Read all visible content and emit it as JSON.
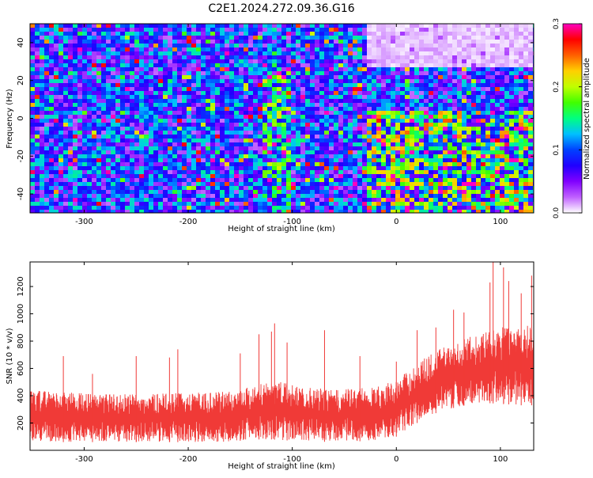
{
  "title": "C2E1.2024.272.09.36.G16",
  "chart_data": [
    {
      "type": "heatmap",
      "xlabel": "Height of straight line (km)",
      "ylabel": "Frequency (Hz)",
      "xlim": [
        -352,
        132
      ],
      "ylim": [
        -50,
        50
      ],
      "xticks": [
        -300,
        -200,
        -100,
        0,
        100
      ],
      "yticks": [
        -40,
        -20,
        0,
        20,
        40
      ],
      "value_range": [
        0.0,
        0.3
      ],
      "colorbar": {
        "label": "Normalized spectral amplitude",
        "ticks": [
          0.0,
          0.1,
          0.2,
          0.3
        ],
        "colors": [
          "#ffffff",
          "#c060ff",
          "#8000ff",
          "#2000ff",
          "#0040ff",
          "#00c0ff",
          "#00ff80",
          "#40ff00",
          "#c0ff00",
          "#ffd000",
          "#ff6000",
          "#ff0000",
          "#ff00c0"
        ]
      },
      "regions": [
        {
          "x": [
            -352,
            -180
          ],
          "y": [
            -50,
            50
          ],
          "mean": 0.04
        },
        {
          "x": [
            -130,
            -100
          ],
          "y": [
            -50,
            30
          ],
          "mean": 0.06
        },
        {
          "x": [
            -30,
            130
          ],
          "y": [
            -50,
            5
          ],
          "mean": 0.07
        },
        {
          "x": [
            -30,
            130
          ],
          "y": [
            28,
            50
          ],
          "mean": 0.005
        }
      ]
    },
    {
      "type": "line",
      "xlabel": "Height of straight line (km)",
      "ylabel": "SNR (10 * v/v)",
      "xlim": [
        -352,
        132
      ],
      "ylim": [
        0,
        1380
      ],
      "xticks": [
        -300,
        -200,
        -100,
        0,
        100
      ],
      "yticks": [
        200,
        400,
        600,
        800,
        1000,
        1200
      ],
      "color": "#f03a37",
      "envelope": {
        "x": [
          -352,
          -300,
          -250,
          -200,
          -160,
          -140,
          -120,
          -100,
          -60,
          -20,
          0,
          20,
          40,
          60,
          80,
          100,
          120,
          132
        ],
        "upper": [
          440,
          420,
          410,
          420,
          430,
          470,
          520,
          480,
          440,
          470,
          510,
          640,
          740,
          800,
          860,
          900,
          920,
          930
        ],
        "lower": [
          60,
          60,
          60,
          60,
          60,
          80,
          80,
          70,
          60,
          70,
          100,
          200,
          280,
          320,
          350,
          340,
          330,
          330
        ]
      },
      "spikes": [
        {
          "x": -352,
          "y": 470
        },
        {
          "x": -320,
          "y": 690
        },
        {
          "x": -292,
          "y": 560
        },
        {
          "x": -250,
          "y": 690
        },
        {
          "x": -218,
          "y": 680
        },
        {
          "x": -210,
          "y": 740
        },
        {
          "x": -150,
          "y": 710
        },
        {
          "x": -132,
          "y": 850
        },
        {
          "x": -120,
          "y": 870
        },
        {
          "x": -117,
          "y": 930
        },
        {
          "x": -105,
          "y": 790
        },
        {
          "x": -69,
          "y": 880
        },
        {
          "x": -35,
          "y": 690
        },
        {
          "x": 0,
          "y": 650
        },
        {
          "x": 20,
          "y": 880
        },
        {
          "x": 38,
          "y": 900
        },
        {
          "x": 55,
          "y": 1030
        },
        {
          "x": 65,
          "y": 1010
        },
        {
          "x": 90,
          "y": 1230
        },
        {
          "x": 93,
          "y": 1380
        },
        {
          "x": 103,
          "y": 1340
        },
        {
          "x": 108,
          "y": 1240
        },
        {
          "x": 120,
          "y": 1150
        },
        {
          "x": 130,
          "y": 1280
        }
      ]
    }
  ]
}
